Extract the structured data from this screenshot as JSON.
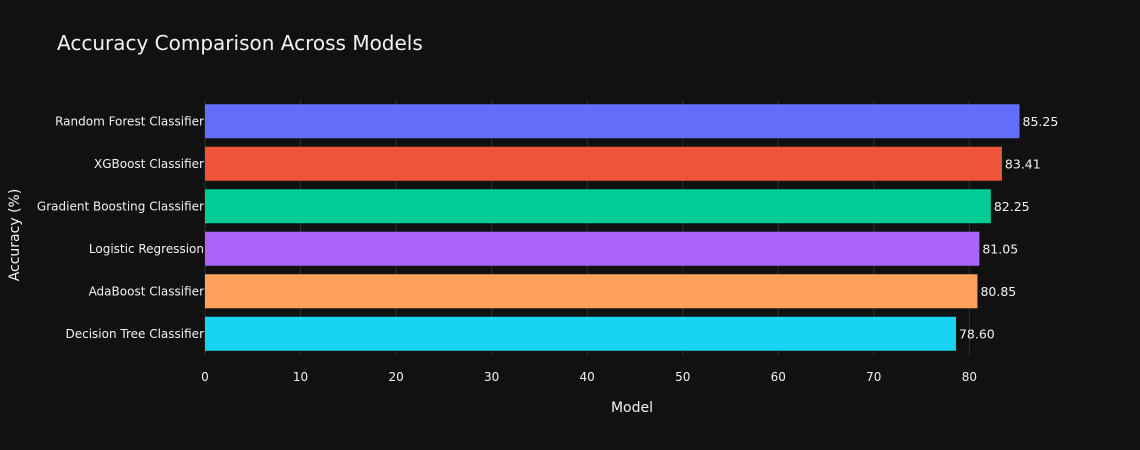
{
  "chart_data": {
    "type": "bar",
    "orientation": "horizontal",
    "title": "Accuracy Comparison Across Models",
    "xlabel": "Model",
    "ylabel": "Accuracy (%)",
    "xlim": [
      0,
      87.5
    ],
    "x_ticks": [
      0,
      10,
      20,
      30,
      40,
      50,
      60,
      70,
      80
    ],
    "grid": true,
    "legend": "none",
    "categories": [
      "Random Forest Classifier",
      "XGBoost Classifier",
      "Gradient Boosting Classifier",
      "Logistic Regression",
      "AdaBoost Classifier",
      "Decision Tree Classifier"
    ],
    "values": [
      85.25,
      83.41,
      82.25,
      81.05,
      80.85,
      78.6
    ],
    "data_labels": [
      "85.25",
      "83.41",
      "82.25",
      "81.05",
      "80.85",
      "78.60"
    ],
    "colors": [
      "#636efa",
      "#ef553b",
      "#00cc96",
      "#ab63fa",
      "#ffa15a",
      "#19d3f3"
    ],
    "background": "#111111",
    "text_color": "#f2f2f2"
  }
}
